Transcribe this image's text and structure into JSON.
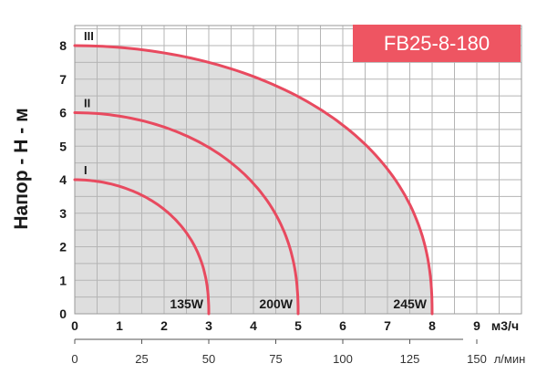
{
  "chart_data": {
    "type": "line",
    "title": "FB25-8-180",
    "ylabel": "Напор - Н - м",
    "xlabel_primary": "м3/ч",
    "xlabel_secondary": "л/мин",
    "xlim": [
      0,
      10
    ],
    "ylim": [
      0,
      8.6
    ],
    "grid": true,
    "x_ticks": [
      "0",
      "1",
      "2",
      "3",
      "4",
      "5",
      "6",
      "7",
      "8",
      "9"
    ],
    "y_ticks": [
      "0",
      "1",
      "2",
      "3",
      "4",
      "5",
      "6",
      "7",
      "8"
    ],
    "secondary_ticks": [
      {
        "label": "0",
        "flow_m3h": 0
      },
      {
        "label": "25",
        "flow_m3h": 1.5
      },
      {
        "label": "50",
        "flow_m3h": 3
      },
      {
        "label": "75",
        "flow_m3h": 4.5
      },
      {
        "label": "100",
        "flow_m3h": 6
      },
      {
        "label": "125",
        "flow_m3h": 7.5
      },
      {
        "label": "150",
        "flow_m3h": 9
      },
      {
        "label": "л/мин",
        "flow_m3h": 10.2
      }
    ],
    "series": [
      {
        "name": "I",
        "power": "135W",
        "max_flow": 3,
        "max_head": 4,
        "color": "#e84a5f"
      },
      {
        "name": "II",
        "power": "200W",
        "max_flow": 5,
        "max_head": 6,
        "color": "#e84a5f"
      },
      {
        "name": "III",
        "power": "245W",
        "max_flow": 8,
        "max_head": 8,
        "color": "#e84a5f"
      }
    ],
    "fill_color": "#dedede",
    "grid_color": "#b5b5b5"
  }
}
